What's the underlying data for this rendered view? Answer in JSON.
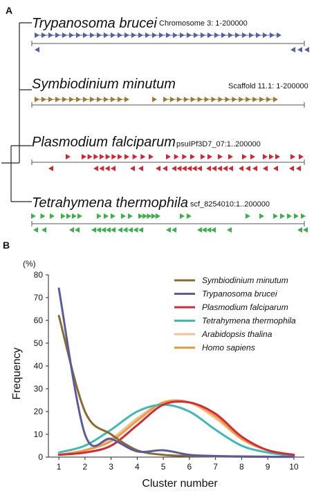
{
  "panel_a": {
    "label": "A",
    "species": [
      {
        "name": "Trypanosoma brucei",
        "locus": "Chromosome 3: 1-200000",
        "color": "#5561a6"
      },
      {
        "name": "Symbiodinium minutum",
        "locus": "Scaffold  11.1: 1-200000",
        "color": "#9a7a35"
      },
      {
        "name": "Plasmodium falciparum",
        "locus": "psuIPf3D7_07:1..200000",
        "color": "#d9242f"
      },
      {
        "name": "Tetrahymena thermophila",
        "locus": "scf_8254010:1..200000",
        "color": "#3bb14a"
      }
    ]
  },
  "chart_data": {
    "panel_label": "B",
    "type": "line",
    "unit_label": "(%)",
    "xlabel": "Cluster number",
    "ylabel": "Frequency",
    "xlim": [
      0.6,
      10.4
    ],
    "ylim": [
      0,
      80
    ],
    "x_ticks": [
      1,
      2,
      3,
      4,
      5,
      6,
      7,
      8,
      9,
      10
    ],
    "y_ticks": [
      0,
      10,
      20,
      30,
      40,
      50,
      60,
      70,
      80
    ],
    "grid": false,
    "legend_position": "top-right",
    "x": [
      1,
      2,
      3,
      4,
      5,
      6,
      7,
      8,
      9,
      10
    ],
    "series": [
      {
        "name": "Symbiodinium minutum",
        "color": "#8b6a2e",
        "values": [
          62,
          20,
          10,
          3,
          1,
          0.5,
          0.3,
          0.2,
          0.1,
          0.1
        ]
      },
      {
        "name": "Trypanosoma brucei",
        "color": "#5a5aa0",
        "values": [
          74,
          10,
          8,
          2.5,
          3,
          1,
          0.5,
          0.3,
          0.2,
          0.1
        ]
      },
      {
        "name": "Plasmodium falciparum",
        "color": "#d42a35",
        "values": [
          1,
          2,
          5,
          14,
          23,
          24,
          19,
          9,
          3,
          1
        ]
      },
      {
        "name": "Tetrahymena thermophila",
        "color": "#3cbab6",
        "values": [
          2,
          5,
          12,
          20,
          23,
          20,
          12,
          5,
          2,
          0.5
        ]
      },
      {
        "name": "Arabidopsis thalina",
        "color": "#f4c198",
        "values": [
          1,
          3,
          8,
          17,
          24,
          24,
          17,
          8,
          3,
          1
        ]
      },
      {
        "name": "Homo sapiens",
        "color": "#f09a3e",
        "values": [
          1,
          3,
          7,
          16,
          24,
          24,
          18,
          8,
          3,
          1
        ]
      }
    ]
  }
}
